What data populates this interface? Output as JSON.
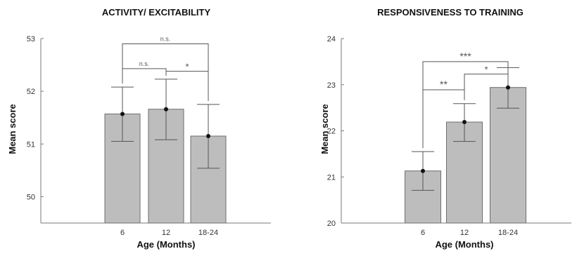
{
  "chart_data": [
    {
      "type": "bar",
      "title": "ACTIVITY/ EXCITABILITY",
      "xlabel": "Age (Months)",
      "ylabel": "Mean score",
      "categories": [
        "6",
        "12",
        "18-24"
      ],
      "values": [
        51.57,
        51.66,
        51.15
      ],
      "error_low": [
        51.05,
        51.08,
        50.54
      ],
      "error_high": [
        52.08,
        52.23,
        51.75
      ],
      "ylim": [
        49.5,
        53
      ],
      "yticks": [
        "50",
        "51",
        "52",
        "53"
      ],
      "bar_color": "#bdbdbd",
      "significance": [
        {
          "from": 0,
          "to": 2,
          "label": "n.s.",
          "level": 52.9
        },
        {
          "from": 0,
          "to": 1,
          "label": "n.s.",
          "level": 52.43
        },
        {
          "from": 1,
          "to": 2,
          "label": "*",
          "level": 52.38
        }
      ]
    },
    {
      "type": "bar",
      "title": "RESPONSIVENESS TO TRAINING",
      "xlabel": "Age (Months)",
      "ylabel": "Mean score",
      "categories": [
        "6",
        "12",
        "18-24"
      ],
      "values": [
        21.13,
        22.19,
        22.94
      ],
      "error_low": [
        20.71,
        21.77,
        22.49
      ],
      "error_high": [
        21.55,
        22.59,
        23.37
      ],
      "ylim": [
        20,
        24
      ],
      "yticks": [
        "20",
        "21",
        "22",
        "23",
        "24"
      ],
      "bar_color": "#bdbdbd",
      "significance": [
        {
          "from": 0,
          "to": 2,
          "label": "***",
          "level": 23.5
        },
        {
          "from": 0,
          "to": 1,
          "label": "**",
          "level": 22.89
        },
        {
          "from": 1,
          "to": 2,
          "label": "*",
          "level": 23.23
        }
      ]
    }
  ]
}
